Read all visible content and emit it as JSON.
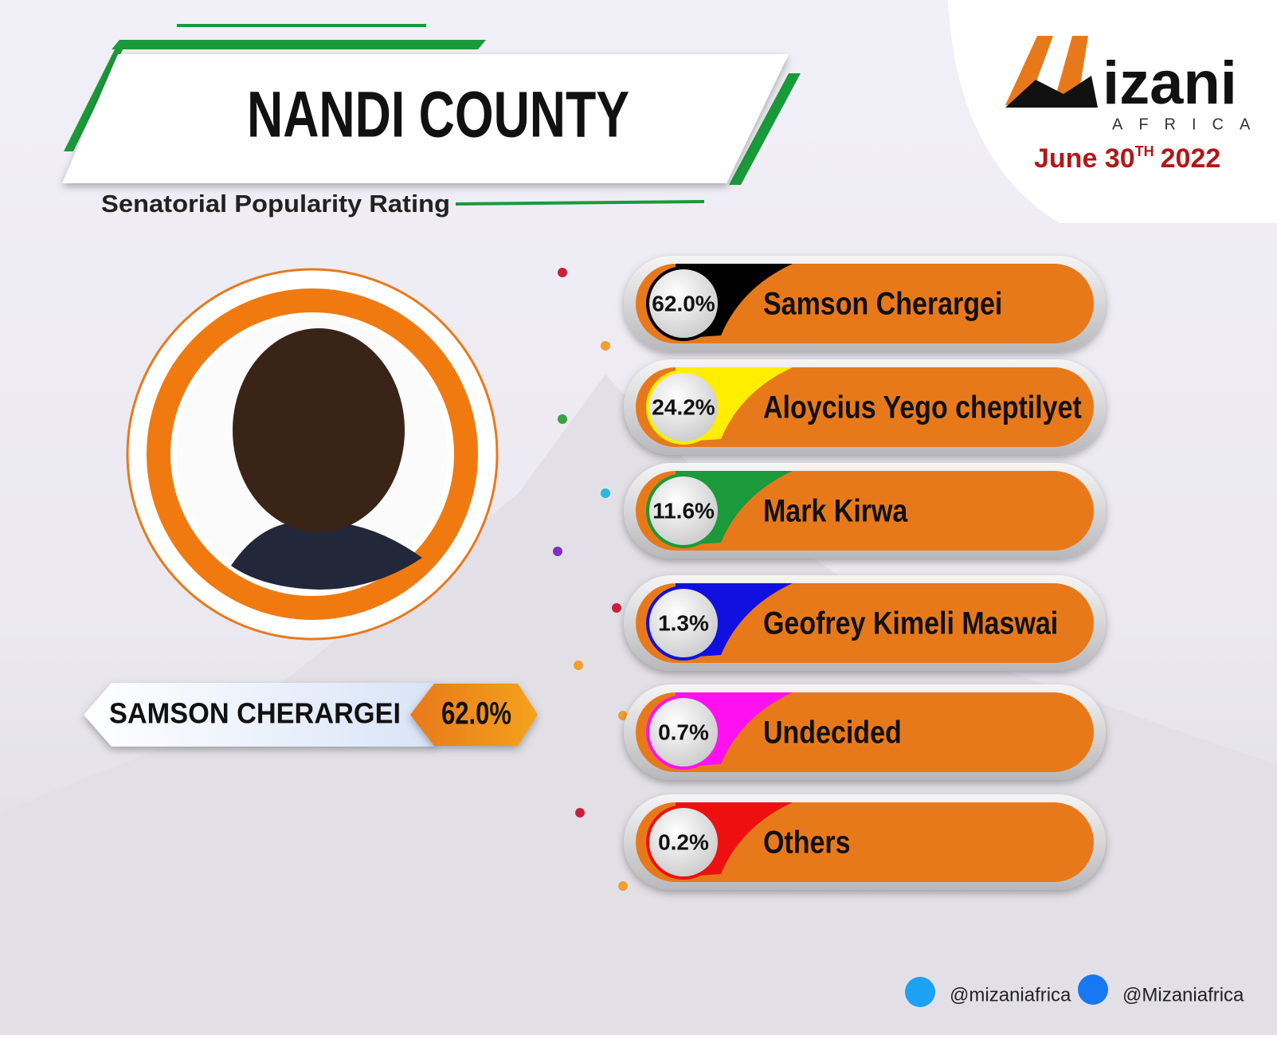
{
  "header": {
    "title": "NANDI COUNTY",
    "subtitle": "Senatorial Popularity Rating"
  },
  "brand": {
    "name": "izani",
    "tagline": "AFRICA",
    "date": "June 30",
    "date_sup": "TH",
    "year": "2022"
  },
  "candidates": [
    {
      "percent": "62.0%",
      "name": "Samson Cherargei",
      "color": "#000000"
    },
    {
      "percent": "24.2%",
      "name": "Aloycius Yego cheptilyet",
      "color": "#ffee00"
    },
    {
      "percent": "11.6%",
      "name": "Mark Kirwa",
      "color": "#1a9a3a"
    },
    {
      "percent": "1.3%",
      "name": "Geofrey Kimeli Maswai",
      "color": "#1010e0"
    },
    {
      "percent": "0.7%",
      "name": "Undecided",
      "color": "#ff10f0"
    },
    {
      "percent": "0.2%",
      "name": "Others",
      "color": "#ee1010"
    }
  ],
  "leader": {
    "name": "SAMSON CHERARGEI",
    "percent": "62.0%"
  },
  "social": {
    "twitter": "@mizaniafrica",
    "facebook": "@Mizaniafrica"
  }
}
